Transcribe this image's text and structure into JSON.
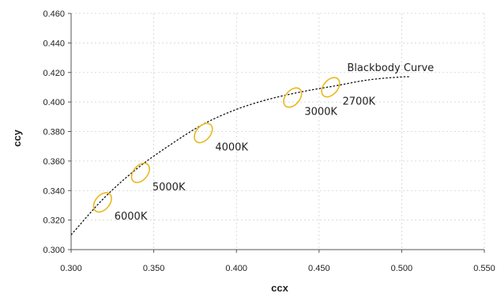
{
  "chart_data": {
    "type": "scatter",
    "xlabel": "ccx",
    "ylabel": "ccy",
    "xlim": [
      0.3,
      0.55
    ],
    "ylim": [
      0.3,
      0.46
    ],
    "x_ticks": [
      "0.300",
      "0.350",
      "0.400",
      "0.450",
      "0.500",
      "0.550"
    ],
    "y_ticks": [
      "0.300",
      "0.320",
      "0.340",
      "0.360",
      "0.380",
      "0.400",
      "0.420",
      "0.440",
      "0.460"
    ],
    "grid": true,
    "colors": {
      "ellipse": "#e8b820",
      "curve": "#111111",
      "grid": "#cfcfcf"
    },
    "series": [
      {
        "name": "Blackbody Curve",
        "style": "dotted",
        "points": [
          [
            0.3,
            0.31
          ],
          [
            0.32,
            0.335
          ],
          [
            0.34,
            0.355
          ],
          [
            0.36,
            0.371
          ],
          [
            0.38,
            0.385
          ],
          [
            0.4,
            0.395
          ],
          [
            0.42,
            0.402
          ],
          [
            0.44,
            0.407
          ],
          [
            0.46,
            0.411
          ],
          [
            0.48,
            0.415
          ],
          [
            0.5,
            0.417
          ],
          [
            0.505,
            0.417
          ]
        ]
      }
    ],
    "ellipses": [
      {
        "label": "6000K",
        "cx": 0.319,
        "cy": 0.332
      },
      {
        "label": "5000K",
        "cx": 0.342,
        "cy": 0.352
      },
      {
        "label": "4000K",
        "cx": 0.38,
        "cy": 0.379
      },
      {
        "label": "3000K",
        "cx": 0.434,
        "cy": 0.403
      },
      {
        "label": "2700K",
        "cx": 0.457,
        "cy": 0.41
      }
    ],
    "annotations": [
      {
        "text": "Blackbody Curve",
        "x": 0.467,
        "y": 0.421
      }
    ]
  }
}
